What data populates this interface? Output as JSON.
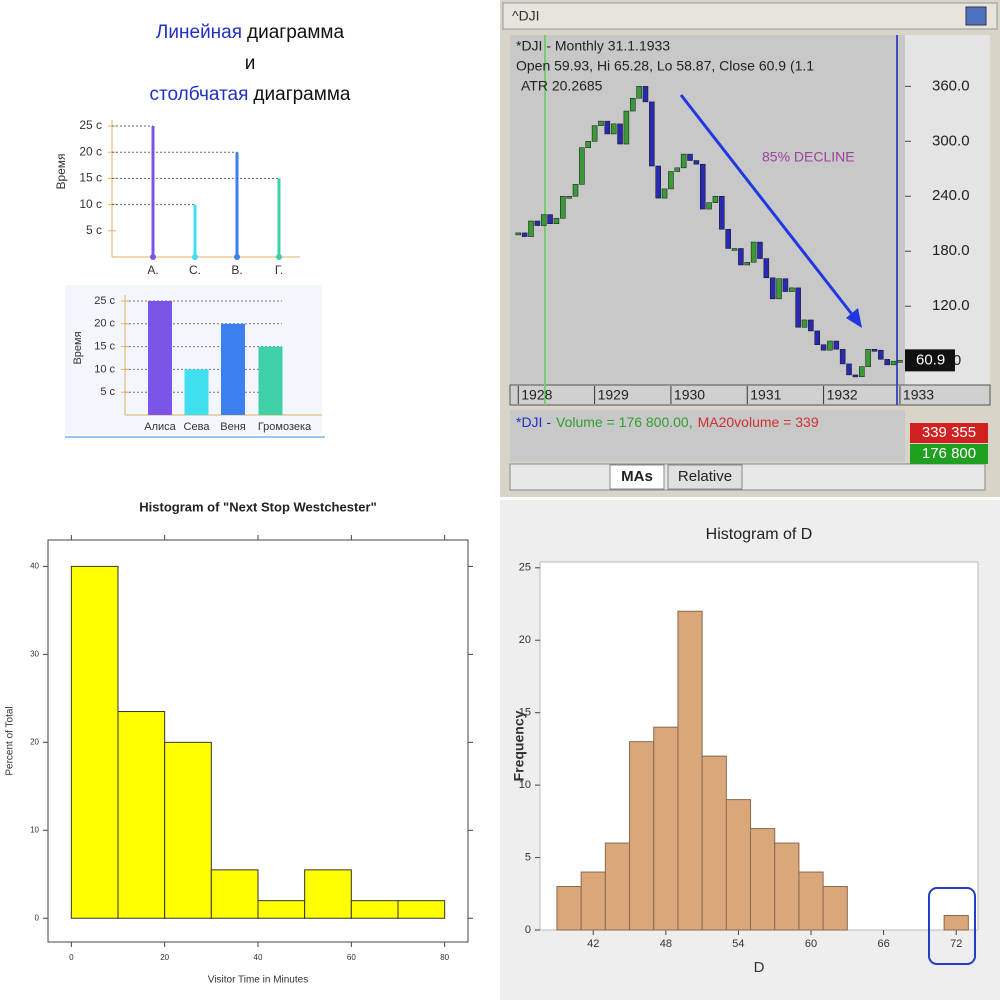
{
  "chart_data": [
    {
      "type": "lollipop",
      "title": [
        [
          "Линейная",
          "диаграмма"
        ],
        [
          "и"
        ],
        [
          "столбчатая",
          "диаграмма"
        ]
      ],
      "ylabel": "Время",
      "categories": [
        "А.",
        "С.",
        "В.",
        "Г."
      ],
      "values": [
        25,
        10,
        20,
        15
      ],
      "colors": [
        "#7b55e8",
        "#40dff0",
        "#3b7ff0",
        "#40d0a8"
      ],
      "ylim": [
        0,
        25
      ],
      "yticks": [
        {
          "value": 5,
          "label": "5 с"
        },
        {
          "value": 10,
          "label": "10 с"
        },
        {
          "value": 15,
          "label": "15 с"
        },
        {
          "value": 20,
          "label": "20 с"
        },
        {
          "value": 25,
          "label": "25 с"
        }
      ]
    },
    {
      "type": "bar",
      "ylabel": "Время",
      "categories": [
        "Алиса",
        "Сева",
        "Веня",
        "Громозека"
      ],
      "values": [
        25,
        10,
        20,
        15
      ],
      "colors": [
        "#7b55e8",
        "#40dff0",
        "#3b7ff0",
        "#40d0a8"
      ],
      "ylim": [
        0,
        25
      ],
      "grid": true,
      "yticks": [
        {
          "value": 5,
          "label": "5 с"
        },
        {
          "value": 10,
          "label": "10 с"
        },
        {
          "value": 15,
          "label": "15 с"
        },
        {
          "value": 20,
          "label": "20 с"
        },
        {
          "value": 25,
          "label": "25 с"
        }
      ]
    },
    {
      "type": "stock",
      "window_title": "^DJI",
      "info": [
        "*DJI - Monthly 31.1.1933",
        "Open 59.93, Hi 65.28, Lo 58.87, Close 60.9 (1.1",
        "ATR 20.2685"
      ],
      "annotation": "85% DECLINE",
      "values": [
        200,
        196,
        213,
        208,
        220,
        210,
        216,
        240,
        240,
        253,
        293,
        300,
        317,
        322,
        308,
        319,
        297,
        333,
        347,
        360,
        343,
        273,
        238,
        248,
        267,
        271,
        286,
        279,
        275,
        226,
        233,
        240,
        204,
        183,
        183,
        165,
        168,
        190,
        172,
        151,
        128,
        150,
        136,
        140,
        97,
        105,
        93,
        78,
        72,
        82,
        73,
        57,
        45,
        43,
        54,
        73,
        72,
        62,
        56,
        60,
        60.9
      ],
      "up_color": "#3a9a3a",
      "down_color": "#2a2ab0",
      "xlim": [
        -1.3,
        60.8
      ],
      "ylim": [
        34,
        416
      ],
      "xticks": [
        {
          "value": 0,
          "label": "1928"
        },
        {
          "value": 12,
          "label": "1929"
        },
        {
          "value": 24,
          "label": "1930"
        },
        {
          "value": 36,
          "label": "1931"
        },
        {
          "value": 48,
          "label": "1932"
        },
        {
          "value": 60,
          "label": "1933"
        }
      ],
      "yticks": [
        {
          "value": 60,
          "label": "60.0"
        },
        {
          "value": 120,
          "label": "120.0"
        },
        {
          "value": 180,
          "label": "180.0"
        },
        {
          "value": 240,
          "label": "240.0"
        },
        {
          "value": 300,
          "label": "300.0"
        },
        {
          "value": 360,
          "label": "360.0"
        }
      ],
      "volume_text": [
        "*DJI -",
        "Volume = 176 800.00,",
        "MA20volume = 339"
      ],
      "volume_tags": [
        "339 355",
        "176 800"
      ],
      "tabs": [
        "MAs",
        "Relative"
      ]
    },
    {
      "type": "histogram",
      "title": "Histogram of  \"Next Stop Westchester\"",
      "xlabel": "Visitor Time in Minutes",
      "ylabel": "Percent of Total",
      "bins": [
        0,
        10,
        20,
        30,
        40,
        50,
        60,
        70,
        80
      ],
      "values": [
        40,
        23.5,
        20,
        5.5,
        2,
        5.5,
        2,
        2
      ],
      "color": "#ffff00",
      "xlim": [
        -5,
        85
      ],
      "ylim": [
        -2.7,
        43
      ],
      "xticks": [
        0,
        20,
        40,
        60,
        80
      ],
      "yticks": [
        0,
        10,
        20,
        30,
        40
      ]
    },
    {
      "type": "histogram",
      "title": "Histogram of D",
      "xlabel": "D",
      "ylabel": "Frequency",
      "bins": [
        39,
        41,
        43,
        45,
        47,
        49,
        51,
        53,
        55,
        57,
        59,
        61,
        63,
        65,
        67,
        69,
        71,
        73
      ],
      "values": [
        3,
        4,
        6,
        13,
        14,
        22,
        12,
        9,
        7,
        6,
        4,
        3,
        0,
        0,
        0,
        0,
        1
      ],
      "color": "#d9a77a",
      "xlim": [
        37.6,
        73.8
      ],
      "ylim": [
        0,
        25.4
      ],
      "xticks": [
        42,
        48,
        54,
        60,
        66,
        72
      ],
      "yticks": [
        0,
        5,
        10,
        15,
        20,
        25
      ]
    }
  ]
}
